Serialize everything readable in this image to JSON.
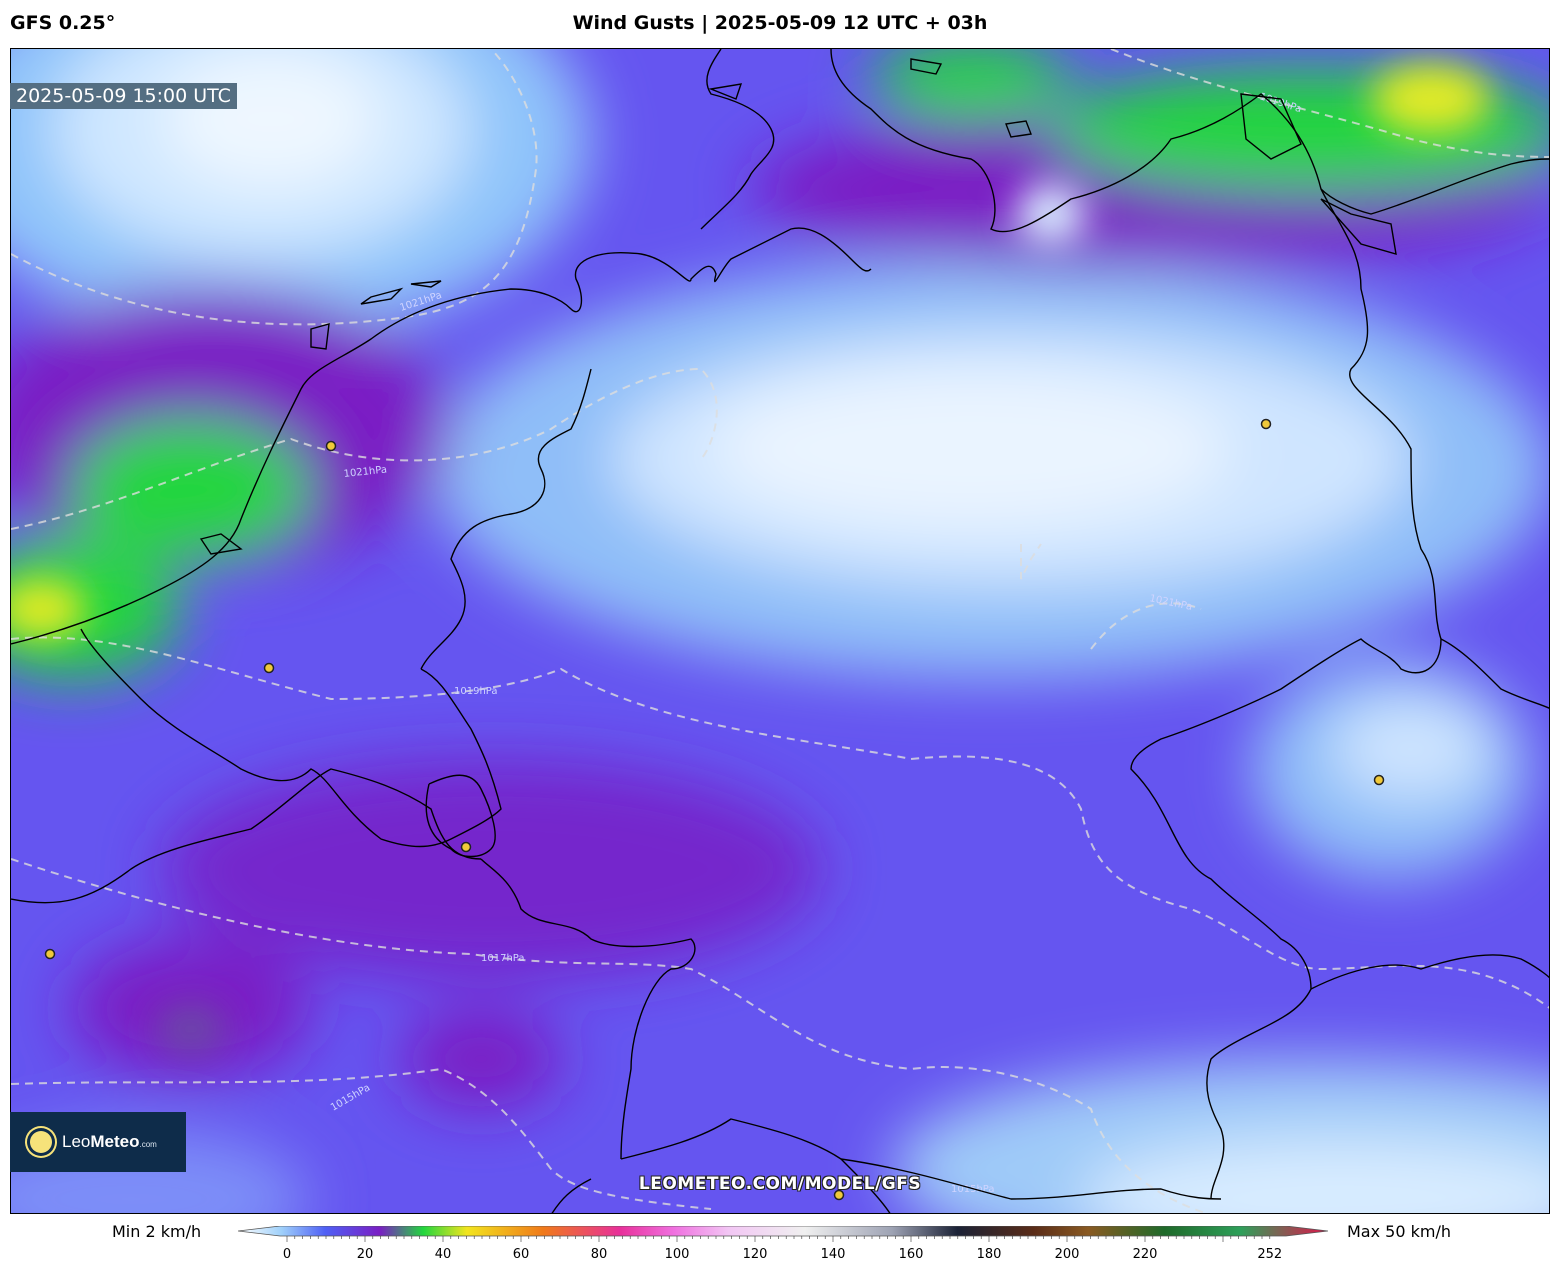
{
  "header": {
    "model": "GFS 0.25°",
    "title": "Wind Gusts | 2025-05-09 12 UTC + 03h"
  },
  "map": {
    "valid_time": "2025-05-09 15:00 UTC",
    "isobar_labels": [
      "1021hPa",
      "1021hPa",
      "1019hPa",
      "1019hPa",
      "1017hPa",
      "1015hPa",
      "1021hPa",
      "1015hPa"
    ],
    "watermark": "LEOMETEO.COM/MODEL/GFS"
  },
  "logo": {
    "name_light": "Leo",
    "name_bold": "Meteo",
    "suffix": ".com"
  },
  "legend": {
    "min": "Min 2 km/h",
    "max": "Max 50 km/h",
    "ticks": [
      "0",
      "20",
      "40",
      "60",
      "80",
      "100",
      "120",
      "140",
      "160",
      "180",
      "200",
      "220",
      "252"
    ],
    "tick_values": [
      0,
      20,
      40,
      60,
      80,
      100,
      120,
      140,
      160,
      180,
      200,
      220,
      252
    ]
  },
  "colors": {
    "calm": "#e6f3ff",
    "light": "#9fd0fa",
    "moderate": "#6b70f8",
    "fresh": "#7a1fc4",
    "strong": "#22d63e",
    "very_strong": "#e2ea28",
    "coastline": "#000000",
    "isobar": "#dddddd",
    "city_marker": "#f0c93a"
  }
}
